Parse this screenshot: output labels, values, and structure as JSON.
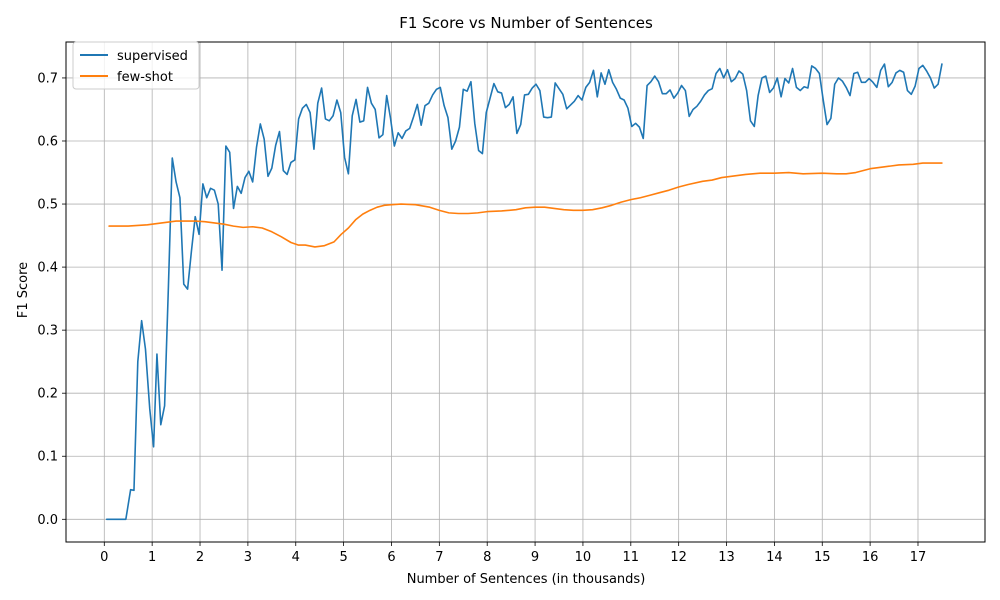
{
  "chart_data": {
    "type": "line",
    "title": "F1 Score vs Number of Sentences",
    "xlabel": "Number of Sentences (in thousands)",
    "ylabel": "F1 Score",
    "xlim": [
      -0.8,
      18.4
    ],
    "ylim": [
      -0.036,
      0.757
    ],
    "xticks": [
      0,
      1,
      2,
      3,
      4,
      5,
      6,
      7,
      8,
      9,
      10,
      11,
      12,
      13,
      14,
      15,
      16,
      17
    ],
    "yticks": [
      0.0,
      0.1,
      0.2,
      0.3,
      0.4,
      0.5,
      0.6,
      0.7
    ],
    "ytick_labels": [
      "0.0",
      "0.1",
      "0.2",
      "0.3",
      "0.4",
      "0.5",
      "0.6",
      "0.7"
    ],
    "grid": true,
    "legend_position": "top-left",
    "series": [
      {
        "name": "supervised",
        "color": "#1f77b4",
        "points": [
          [
            0.05,
            0.0
          ],
          [
            0.2,
            0.0
          ],
          [
            0.35,
            0.0
          ],
          [
            0.45,
            0.0
          ],
          [
            0.55,
            0.047
          ],
          [
            0.62,
            0.046
          ],
          [
            0.7,
            0.25
          ],
          [
            0.78,
            0.315
          ],
          [
            0.86,
            0.27
          ],
          [
            0.95,
            0.175
          ],
          [
            1.03,
            0.115
          ],
          [
            1.1,
            0.262
          ],
          [
            1.18,
            0.15
          ],
          [
            1.26,
            0.18
          ],
          [
            1.34,
            0.37
          ],
          [
            1.42,
            0.573
          ],
          [
            1.5,
            0.535
          ],
          [
            1.58,
            0.51
          ],
          [
            1.66,
            0.373
          ],
          [
            1.74,
            0.365
          ],
          [
            1.82,
            0.425
          ],
          [
            1.9,
            0.48
          ],
          [
            1.98,
            0.452
          ],
          [
            2.06,
            0.532
          ],
          [
            2.14,
            0.51
          ],
          [
            2.22,
            0.525
          ],
          [
            2.3,
            0.522
          ],
          [
            2.38,
            0.5
          ],
          [
            2.46,
            0.395
          ],
          [
            2.54,
            0.592
          ],
          [
            2.62,
            0.582
          ],
          [
            2.7,
            0.493
          ],
          [
            2.78,
            0.528
          ],
          [
            2.86,
            0.517
          ],
          [
            2.94,
            0.542
          ],
          [
            3.02,
            0.552
          ],
          [
            3.1,
            0.535
          ],
          [
            3.18,
            0.59
          ],
          [
            3.26,
            0.627
          ],
          [
            3.34,
            0.603
          ],
          [
            3.42,
            0.544
          ],
          [
            3.5,
            0.557
          ],
          [
            3.58,
            0.593
          ],
          [
            3.66,
            0.615
          ],
          [
            3.74,
            0.553
          ],
          [
            3.82,
            0.547
          ],
          [
            3.9,
            0.566
          ],
          [
            3.98,
            0.57
          ],
          [
            4.06,
            0.635
          ],
          [
            4.14,
            0.652
          ],
          [
            4.22,
            0.658
          ],
          [
            4.3,
            0.645
          ],
          [
            4.38,
            0.587
          ],
          [
            4.46,
            0.66
          ],
          [
            4.54,
            0.684
          ],
          [
            4.62,
            0.635
          ],
          [
            4.7,
            0.632
          ],
          [
            4.78,
            0.64
          ],
          [
            4.86,
            0.665
          ],
          [
            4.94,
            0.645
          ],
          [
            5.02,
            0.574
          ],
          [
            5.1,
            0.548
          ],
          [
            5.18,
            0.64
          ],
          [
            5.26,
            0.666
          ],
          [
            5.34,
            0.63
          ],
          [
            5.42,
            0.632
          ],
          [
            5.5,
            0.685
          ],
          [
            5.58,
            0.66
          ],
          [
            5.66,
            0.65
          ],
          [
            5.74,
            0.605
          ],
          [
            5.82,
            0.61
          ],
          [
            5.9,
            0.672
          ],
          [
            5.98,
            0.636
          ],
          [
            6.06,
            0.592
          ],
          [
            6.14,
            0.613
          ],
          [
            6.22,
            0.604
          ],
          [
            6.3,
            0.616
          ],
          [
            6.38,
            0.62
          ],
          [
            6.46,
            0.638
          ],
          [
            6.54,
            0.658
          ],
          [
            6.62,
            0.625
          ],
          [
            6.7,
            0.656
          ],
          [
            6.78,
            0.66
          ],
          [
            6.86,
            0.673
          ],
          [
            6.94,
            0.682
          ],
          [
            7.02,
            0.685
          ],
          [
            7.1,
            0.656
          ],
          [
            7.18,
            0.637
          ],
          [
            7.26,
            0.587
          ],
          [
            7.34,
            0.6
          ],
          [
            7.42,
            0.622
          ],
          [
            7.5,
            0.682
          ],
          [
            7.58,
            0.679
          ],
          [
            7.66,
            0.694
          ],
          [
            7.74,
            0.628
          ],
          [
            7.82,
            0.585
          ],
          [
            7.9,
            0.58
          ],
          [
            7.98,
            0.645
          ],
          [
            8.06,
            0.668
          ],
          [
            8.14,
            0.691
          ],
          [
            8.22,
            0.678
          ],
          [
            8.3,
            0.676
          ],
          [
            8.38,
            0.653
          ],
          [
            8.46,
            0.658
          ],
          [
            8.54,
            0.67
          ],
          [
            8.62,
            0.612
          ],
          [
            8.7,
            0.626
          ],
          [
            8.78,
            0.673
          ],
          [
            8.86,
            0.674
          ],
          [
            8.94,
            0.684
          ],
          [
            9.02,
            0.69
          ],
          [
            9.1,
            0.68
          ],
          [
            9.18,
            0.638
          ],
          [
            9.26,
            0.637
          ],
          [
            9.34,
            0.638
          ],
          [
            9.42,
            0.692
          ],
          [
            9.5,
            0.683
          ],
          [
            9.58,
            0.674
          ],
          [
            9.66,
            0.651
          ],
          [
            9.74,
            0.657
          ],
          [
            9.82,
            0.663
          ],
          [
            9.9,
            0.672
          ],
          [
            9.98,
            0.665
          ],
          [
            10.06,
            0.685
          ],
          [
            10.14,
            0.693
          ],
          [
            10.22,
            0.712
          ],
          [
            10.3,
            0.67
          ],
          [
            10.38,
            0.708
          ],
          [
            10.46,
            0.69
          ],
          [
            10.54,
            0.713
          ],
          [
            10.62,
            0.693
          ],
          [
            10.7,
            0.682
          ],
          [
            10.78,
            0.668
          ],
          [
            10.86,
            0.665
          ],
          [
            10.94,
            0.652
          ],
          [
            11.02,
            0.623
          ],
          [
            11.1,
            0.628
          ],
          [
            11.18,
            0.622
          ],
          [
            11.26,
            0.604
          ],
          [
            11.34,
            0.688
          ],
          [
            11.42,
            0.694
          ],
          [
            11.5,
            0.703
          ],
          [
            11.58,
            0.694
          ],
          [
            11.66,
            0.675
          ],
          [
            11.74,
            0.675
          ],
          [
            11.82,
            0.681
          ],
          [
            11.9,
            0.668
          ],
          [
            11.98,
            0.676
          ],
          [
            12.06,
            0.688
          ],
          [
            12.14,
            0.68
          ],
          [
            12.22,
            0.639
          ],
          [
            12.3,
            0.65
          ],
          [
            12.38,
            0.655
          ],
          [
            12.46,
            0.663
          ],
          [
            12.54,
            0.673
          ],
          [
            12.62,
            0.68
          ],
          [
            12.7,
            0.683
          ],
          [
            12.78,
            0.707
          ],
          [
            12.86,
            0.715
          ],
          [
            12.94,
            0.7
          ],
          [
            13.02,
            0.713
          ],
          [
            13.1,
            0.694
          ],
          [
            13.18,
            0.699
          ],
          [
            13.26,
            0.711
          ],
          [
            13.34,
            0.706
          ],
          [
            13.42,
            0.68
          ],
          [
            13.5,
            0.632
          ],
          [
            13.58,
            0.623
          ],
          [
            13.66,
            0.672
          ],
          [
            13.74,
            0.7
          ],
          [
            13.82,
            0.703
          ],
          [
            13.9,
            0.677
          ],
          [
            13.98,
            0.684
          ],
          [
            14.06,
            0.7
          ],
          [
            14.14,
            0.67
          ],
          [
            14.22,
            0.699
          ],
          [
            14.3,
            0.692
          ],
          [
            14.38,
            0.715
          ],
          [
            14.46,
            0.685
          ],
          [
            14.54,
            0.68
          ],
          [
            14.62,
            0.686
          ],
          [
            14.7,
            0.684
          ],
          [
            14.78,
            0.719
          ],
          [
            14.86,
            0.715
          ],
          [
            14.94,
            0.707
          ],
          [
            15.02,
            0.665
          ],
          [
            15.1,
            0.626
          ],
          [
            15.18,
            0.636
          ],
          [
            15.26,
            0.69
          ],
          [
            15.34,
            0.7
          ],
          [
            15.42,
            0.695
          ],
          [
            15.5,
            0.685
          ],
          [
            15.58,
            0.672
          ],
          [
            15.66,
            0.707
          ],
          [
            15.74,
            0.709
          ],
          [
            15.82,
            0.693
          ],
          [
            15.9,
            0.693
          ],
          [
            15.98,
            0.699
          ],
          [
            16.06,
            0.693
          ],
          [
            16.14,
            0.685
          ],
          [
            16.22,
            0.712
          ],
          [
            16.3,
            0.722
          ],
          [
            16.38,
            0.686
          ],
          [
            16.46,
            0.693
          ],
          [
            16.54,
            0.708
          ],
          [
            16.62,
            0.712
          ],
          [
            16.7,
            0.709
          ],
          [
            16.78,
            0.68
          ],
          [
            16.86,
            0.674
          ],
          [
            16.94,
            0.687
          ],
          [
            17.02,
            0.715
          ],
          [
            17.1,
            0.72
          ],
          [
            17.18,
            0.711
          ],
          [
            17.26,
            0.7
          ],
          [
            17.34,
            0.684
          ],
          [
            17.42,
            0.69
          ],
          [
            17.5,
            0.722
          ]
        ]
      },
      {
        "name": "few-shot",
        "color": "#ff7f0e",
        "points": [
          [
            0.1,
            0.465
          ],
          [
            0.3,
            0.465
          ],
          [
            0.5,
            0.465
          ],
          [
            0.7,
            0.466
          ],
          [
            0.9,
            0.467
          ],
          [
            1.1,
            0.469
          ],
          [
            1.3,
            0.471
          ],
          [
            1.5,
            0.473
          ],
          [
            1.7,
            0.473
          ],
          [
            1.9,
            0.473
          ],
          [
            2.1,
            0.472
          ],
          [
            2.3,
            0.47
          ],
          [
            2.5,
            0.468
          ],
          [
            2.7,
            0.465
          ],
          [
            2.9,
            0.463
          ],
          [
            3.1,
            0.464
          ],
          [
            3.3,
            0.462
          ],
          [
            3.5,
            0.456
          ],
          [
            3.7,
            0.448
          ],
          [
            3.9,
            0.439
          ],
          [
            4.05,
            0.435
          ],
          [
            4.2,
            0.435
          ],
          [
            4.4,
            0.432
          ],
          [
            4.6,
            0.434
          ],
          [
            4.8,
            0.44
          ],
          [
            4.95,
            0.452
          ],
          [
            5.1,
            0.462
          ],
          [
            5.25,
            0.475
          ],
          [
            5.4,
            0.484
          ],
          [
            5.55,
            0.49
          ],
          [
            5.7,
            0.495
          ],
          [
            5.85,
            0.498
          ],
          [
            6.0,
            0.499
          ],
          [
            6.2,
            0.5
          ],
          [
            6.5,
            0.499
          ],
          [
            6.8,
            0.495
          ],
          [
            7.0,
            0.49
          ],
          [
            7.2,
            0.486
          ],
          [
            7.4,
            0.485
          ],
          [
            7.6,
            0.485
          ],
          [
            7.8,
            0.486
          ],
          [
            8.0,
            0.488
          ],
          [
            8.3,
            0.489
          ],
          [
            8.6,
            0.491
          ],
          [
            8.8,
            0.494
          ],
          [
            9.0,
            0.495
          ],
          [
            9.2,
            0.495
          ],
          [
            9.4,
            0.493
          ],
          [
            9.6,
            0.491
          ],
          [
            9.8,
            0.49
          ],
          [
            10.0,
            0.49
          ],
          [
            10.2,
            0.491
          ],
          [
            10.4,
            0.494
          ],
          [
            10.6,
            0.498
          ],
          [
            10.8,
            0.503
          ],
          [
            11.0,
            0.507
          ],
          [
            11.2,
            0.51
          ],
          [
            11.4,
            0.514
          ],
          [
            11.6,
            0.518
          ],
          [
            11.8,
            0.522
          ],
          [
            12.0,
            0.527
          ],
          [
            12.2,
            0.531
          ],
          [
            12.5,
            0.536
          ],
          [
            12.7,
            0.538
          ],
          [
            12.9,
            0.542
          ],
          [
            13.1,
            0.544
          ],
          [
            13.4,
            0.547
          ],
          [
            13.7,
            0.549
          ],
          [
            14.0,
            0.549
          ],
          [
            14.3,
            0.55
          ],
          [
            14.6,
            0.548
          ],
          [
            15.0,
            0.549
          ],
          [
            15.3,
            0.548
          ],
          [
            15.5,
            0.548
          ],
          [
            15.7,
            0.55
          ],
          [
            16.0,
            0.556
          ],
          [
            16.3,
            0.559
          ],
          [
            16.6,
            0.562
          ],
          [
            16.9,
            0.563
          ],
          [
            17.1,
            0.565
          ],
          [
            17.3,
            0.565
          ],
          [
            17.5,
            0.565
          ]
        ]
      }
    ]
  }
}
